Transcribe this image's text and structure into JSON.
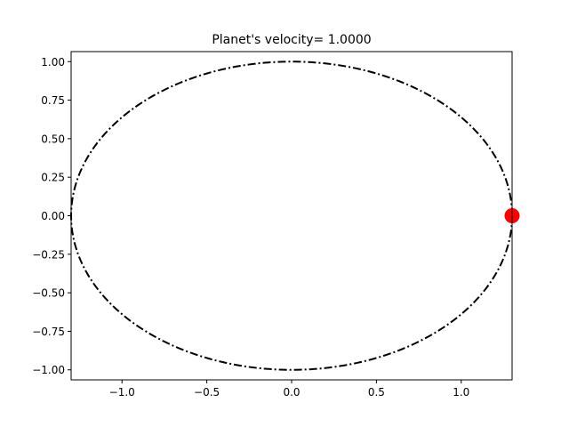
{
  "chart_data": {
    "type": "line",
    "title": "Planet's velocity= 1.0000",
    "xlabel": "",
    "ylabel": "",
    "xlim": [
      -1.3,
      1.3
    ],
    "ylim": [
      -1.065,
      1.065
    ],
    "x_ticks": [
      -1.0,
      -0.5,
      0.0,
      0.5,
      1.0
    ],
    "x_tick_labels": [
      "−1.0",
      "−0.5",
      "0.0",
      "0.5",
      "1.0"
    ],
    "y_ticks": [
      1.0,
      0.75,
      0.5,
      0.25,
      0.0,
      -0.25,
      -0.5,
      -0.75,
      -1.0
    ],
    "y_tick_labels": [
      "1.00",
      "0.75",
      "0.50",
      "0.25",
      "0.00",
      "−0.25",
      "−0.50",
      "−0.75",
      "−1.00"
    ],
    "grid": false,
    "series": [
      {
        "kind": "orbit-ellipse",
        "semi_major_x": 1.3,
        "semi_minor_y": 1.0,
        "center": [
          0,
          0
        ],
        "color": "#000000",
        "linestyle": "dash-dot"
      },
      {
        "kind": "planet-point",
        "x": 1.3,
        "y": 0.0,
        "color": "#ff0000"
      }
    ]
  }
}
